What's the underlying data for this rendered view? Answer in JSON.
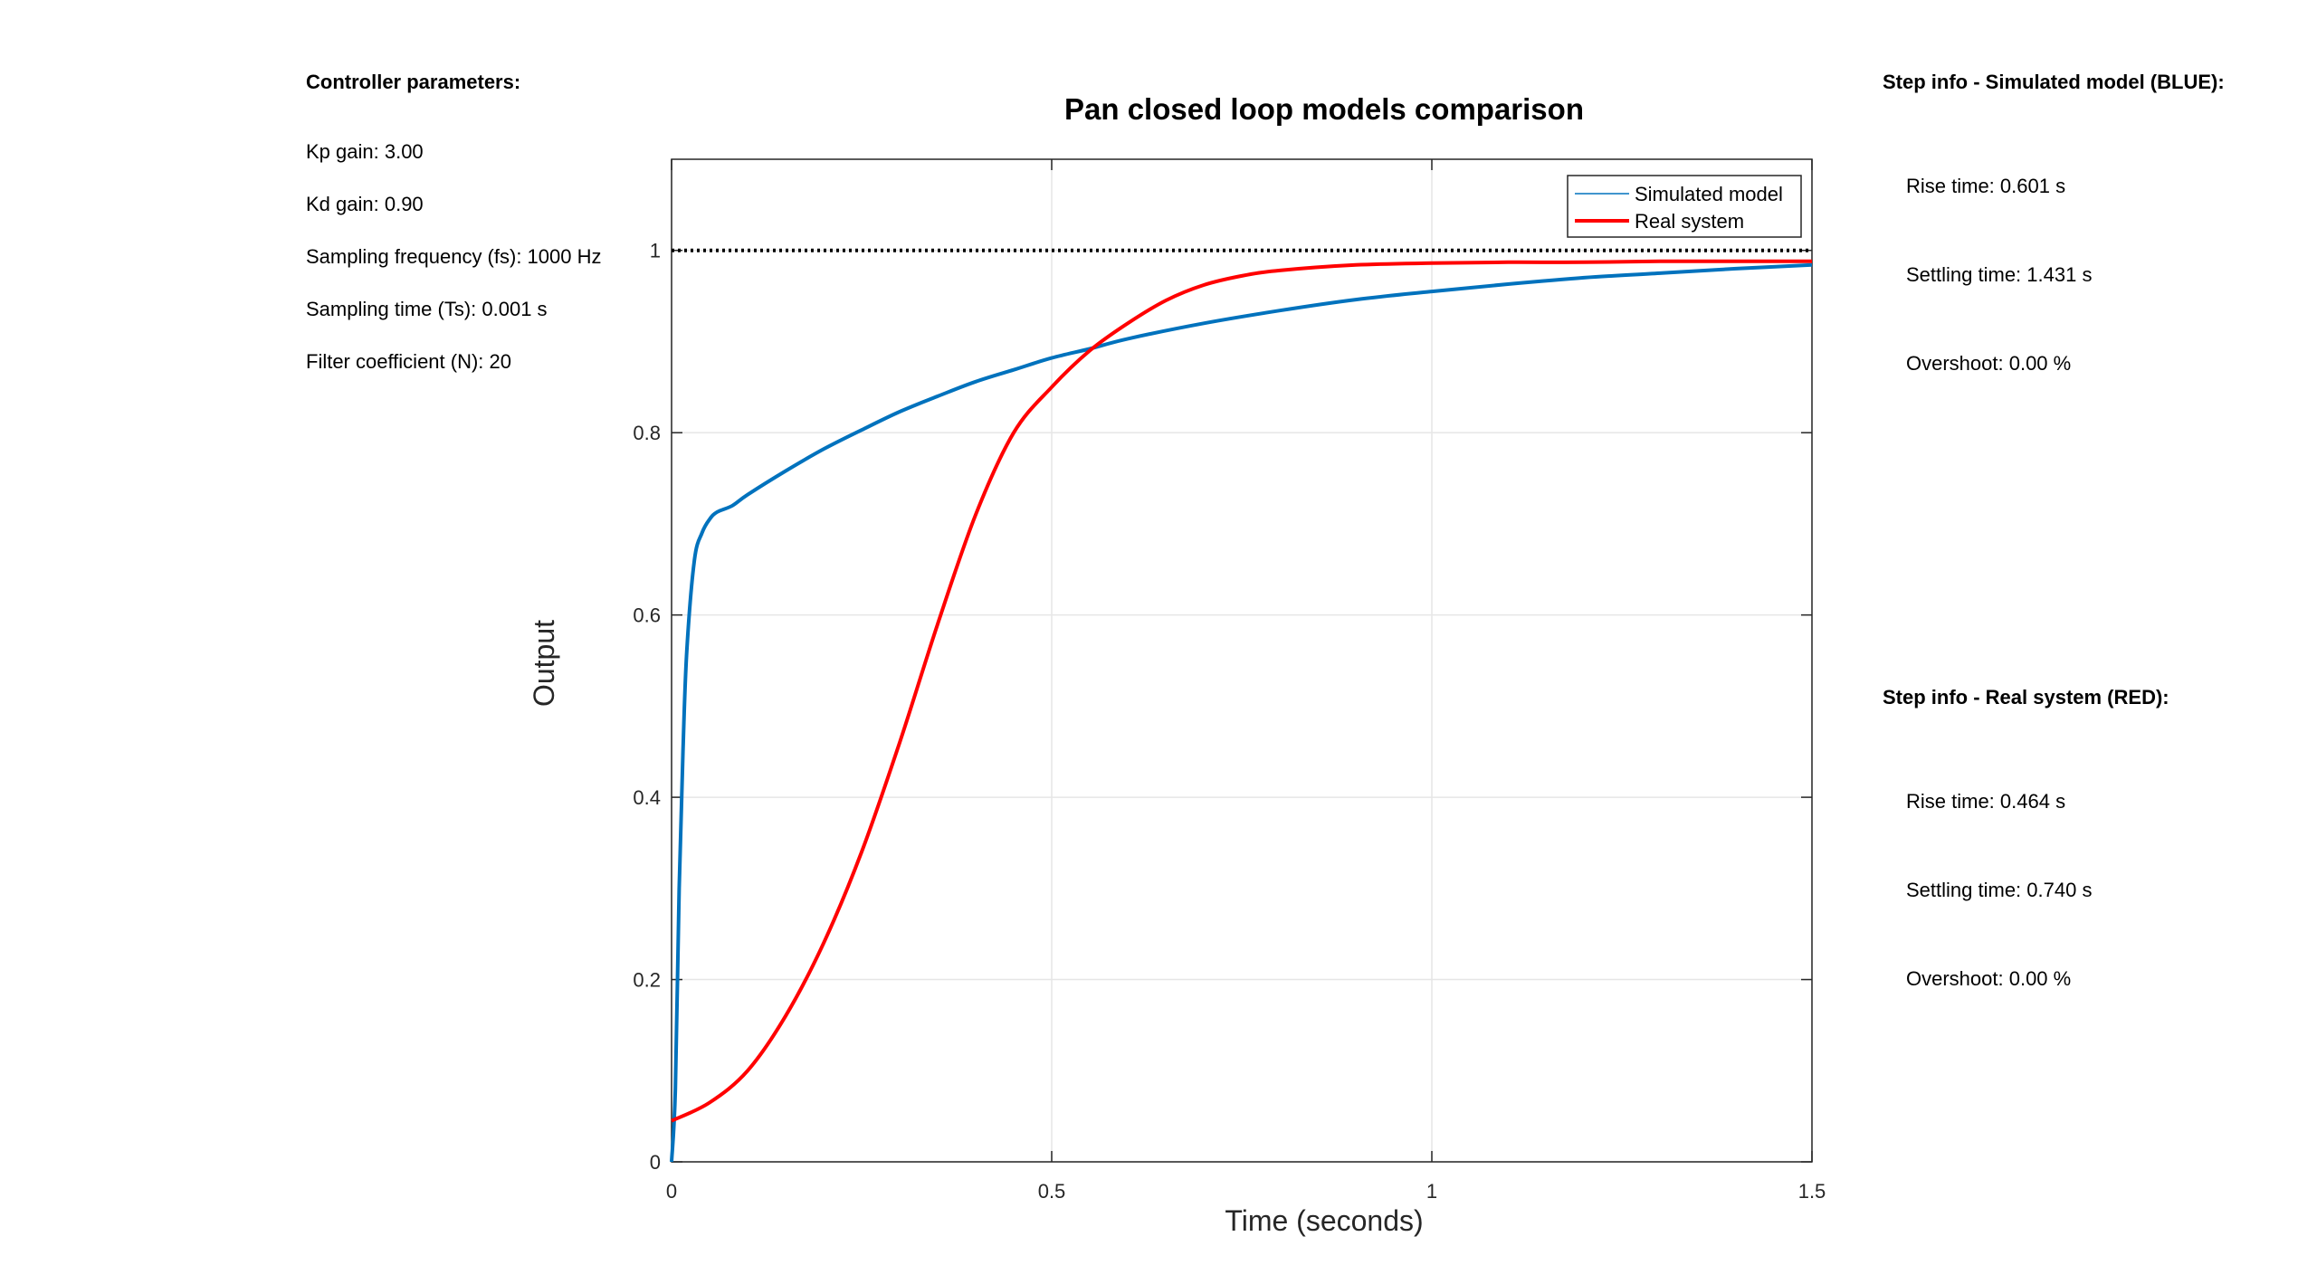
{
  "controller": {
    "heading": "Controller parameters:",
    "items": [
      "Kp gain: 3.00",
      "Kd gain: 0.90",
      "Sampling frequency (fs): 1000 Hz",
      "Sampling time (Ts): 0.001 s",
      "Filter coefficient (N): 20"
    ]
  },
  "step_blue": {
    "heading": "Step info - Simulated model (BLUE):",
    "items": [
      "Rise time: 0.601 s",
      "Settling time: 1.431 s",
      "Overshoot: 0.00 %"
    ]
  },
  "step_red": {
    "heading": "Step info - Real system (RED):",
    "items": [
      "Rise time: 0.464 s",
      "Settling time: 0.740 s",
      "Overshoot: 0.00 %"
    ]
  },
  "chart_data": {
    "type": "line",
    "title": "Pan closed loop models comparison",
    "xlabel": "Time (seconds)",
    "ylabel": "Output",
    "xlim": [
      0,
      1.5
    ],
    "ylim": [
      0,
      1.1
    ],
    "xticks": [
      0,
      0.5,
      1,
      1.5
    ],
    "xtick_labels": [
      "0",
      "0.5",
      "1",
      "1.5"
    ],
    "yticks": [
      0,
      0.2,
      0.4,
      0.6,
      0.8,
      1
    ],
    "ytick_labels": [
      "0",
      "0.2",
      "0.4",
      "0.6",
      "0.8",
      "1"
    ],
    "grid": true,
    "legend_position": "top-right",
    "reference_line": {
      "y": 1,
      "style": "dotted",
      "color": "#000000"
    },
    "series": [
      {
        "name": "Simulated model",
        "color": "#0072BD",
        "x": [
          0,
          0.005,
          0.01,
          0.015,
          0.02,
          0.03,
          0.04,
          0.05,
          0.06,
          0.08,
          0.1,
          0.15,
          0.2,
          0.25,
          0.3,
          0.35,
          0.4,
          0.45,
          0.5,
          0.55,
          0.6,
          0.7,
          0.8,
          0.9,
          1.0,
          1.1,
          1.2,
          1.3,
          1.4,
          1.5
        ],
        "y": [
          0,
          0.08,
          0.3,
          0.45,
          0.56,
          0.66,
          0.69,
          0.705,
          0.713,
          0.72,
          0.732,
          0.758,
          0.782,
          0.803,
          0.823,
          0.84,
          0.856,
          0.869,
          0.882,
          0.892,
          0.903,
          0.92,
          0.934,
          0.946,
          0.955,
          0.963,
          0.97,
          0.975,
          0.98,
          0.984
        ]
      },
      {
        "name": "Real system",
        "color": "#FF0000",
        "x": [
          0,
          0.05,
          0.1,
          0.15,
          0.2,
          0.25,
          0.3,
          0.35,
          0.4,
          0.45,
          0.5,
          0.55,
          0.6,
          0.65,
          0.7,
          0.75,
          0.8,
          0.9,
          1.0,
          1.1,
          1.2,
          1.3,
          1.4,
          1.5
        ],
        "y": [
          0.045,
          0.065,
          0.1,
          0.16,
          0.24,
          0.34,
          0.46,
          0.59,
          0.71,
          0.8,
          0.85,
          0.89,
          0.92,
          0.945,
          0.962,
          0.972,
          0.978,
          0.984,
          0.986,
          0.987,
          0.987,
          0.988,
          0.988,
          0.988
        ]
      }
    ]
  }
}
